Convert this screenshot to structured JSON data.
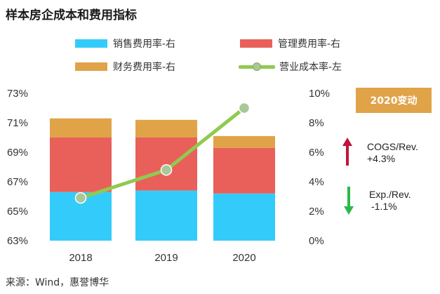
{
  "title": "样本房企成本和费用指标",
  "legend": [
    {
      "label": "销售费用率-右",
      "color": "#33ccfa"
    },
    {
      "label": "管理费用率-右",
      "color": "#e9605a"
    },
    {
      "label": "财务费用率-右",
      "color": "#e0a348"
    },
    {
      "label": "营业成本率-左",
      "color": "#92c950"
    }
  ],
  "chart_data": {
    "type": "bar",
    "categories": [
      "2018",
      "2019",
      "2020"
    ],
    "series": [
      {
        "name": "销售费用率-右",
        "axis": "right",
        "stacked": true,
        "values": [
          3.3,
          3.4,
          3.2
        ],
        "color": "#33ccfa"
      },
      {
        "name": "管理费用率-右",
        "axis": "right",
        "stacked": true,
        "values": [
          3.7,
          3.6,
          3.1
        ],
        "color": "#e9605a"
      },
      {
        "name": "财务费用率-右",
        "axis": "right",
        "stacked": true,
        "values": [
          1.3,
          1.2,
          0.8
        ],
        "color": "#e0a348"
      },
      {
        "name": "营业成本率-左",
        "axis": "left",
        "type": "line",
        "values": [
          65.9,
          67.8,
          72.0
        ],
        "color": "#92c950"
      }
    ],
    "y_left": {
      "ylim": [
        63,
        73
      ],
      "ticks": [
        "63%",
        "65%",
        "67%",
        "69%",
        "71%",
        "73%"
      ],
      "tick_values": [
        63,
        65,
        67,
        69,
        71,
        73
      ]
    },
    "y_right": {
      "ylim": [
        0,
        10
      ],
      "ticks": [
        "0%",
        "2%",
        "4%",
        "6%",
        "8%",
        "10%"
      ],
      "tick_values": [
        0,
        2,
        4,
        6,
        8,
        10
      ]
    },
    "grid": false,
    "legend_position": "top"
  },
  "badge": "2020变动",
  "annotations": [
    {
      "line1": "COGS/Rev.",
      "line2": "+4.3%",
      "direction": "up",
      "color": "#c0143c"
    },
    {
      "line1": "Exp./Rev.",
      "line2": "-1.1%",
      "direction": "down",
      "color": "#2bb84a"
    }
  ],
  "source": "来源：Wind，惠誉博华"
}
